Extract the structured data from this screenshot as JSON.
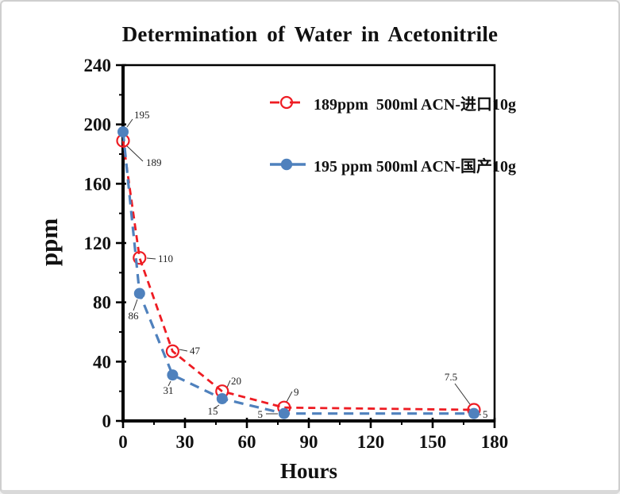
{
  "window": {
    "background": "#ffffff",
    "border_color": "#cfcfcf"
  },
  "chart_data": {
    "type": "line",
    "title": "Determination of Water in Acetonitrile",
    "xlabel": "Hours",
    "ylabel": "ppm",
    "xlim": [
      0,
      180
    ],
    "ylim": [
      0,
      240
    ],
    "x_major_ticks": [
      0,
      30,
      60,
      90,
      120,
      150,
      180
    ],
    "x_minor_ticks": [
      15,
      45,
      75,
      105,
      135,
      165
    ],
    "y_major_ticks": [
      0,
      40,
      80,
      120,
      160,
      200,
      240
    ],
    "y_minor_ticks": [
      20,
      60,
      100,
      140,
      180,
      220
    ],
    "grid": false,
    "legend_position": "inside-upper-right",
    "axis_color": "#000000",
    "series": [
      {
        "name": "189ppm  500ml ACN-进口10g",
        "color": "#ee1c23",
        "line_style": "dashed",
        "marker": "open-circle",
        "x": [
          0,
          8,
          24,
          48,
          78,
          170
        ],
        "y": [
          189,
          110,
          47,
          20,
          9,
          7.5
        ],
        "point_labels": [
          "189",
          "110",
          "47",
          "20",
          "9",
          "7.5"
        ]
      },
      {
        "name": "195 ppm 500ml ACN-国产10g",
        "color": "#4f81bd",
        "line_style": "dashed",
        "marker": "filled-circle",
        "x": [
          0,
          8,
          24,
          48,
          78,
          170
        ],
        "y": [
          195,
          86,
          31,
          15,
          5,
          5
        ],
        "point_labels": [
          "195",
          "86",
          "31",
          "15",
          "5",
          "5"
        ]
      }
    ]
  }
}
